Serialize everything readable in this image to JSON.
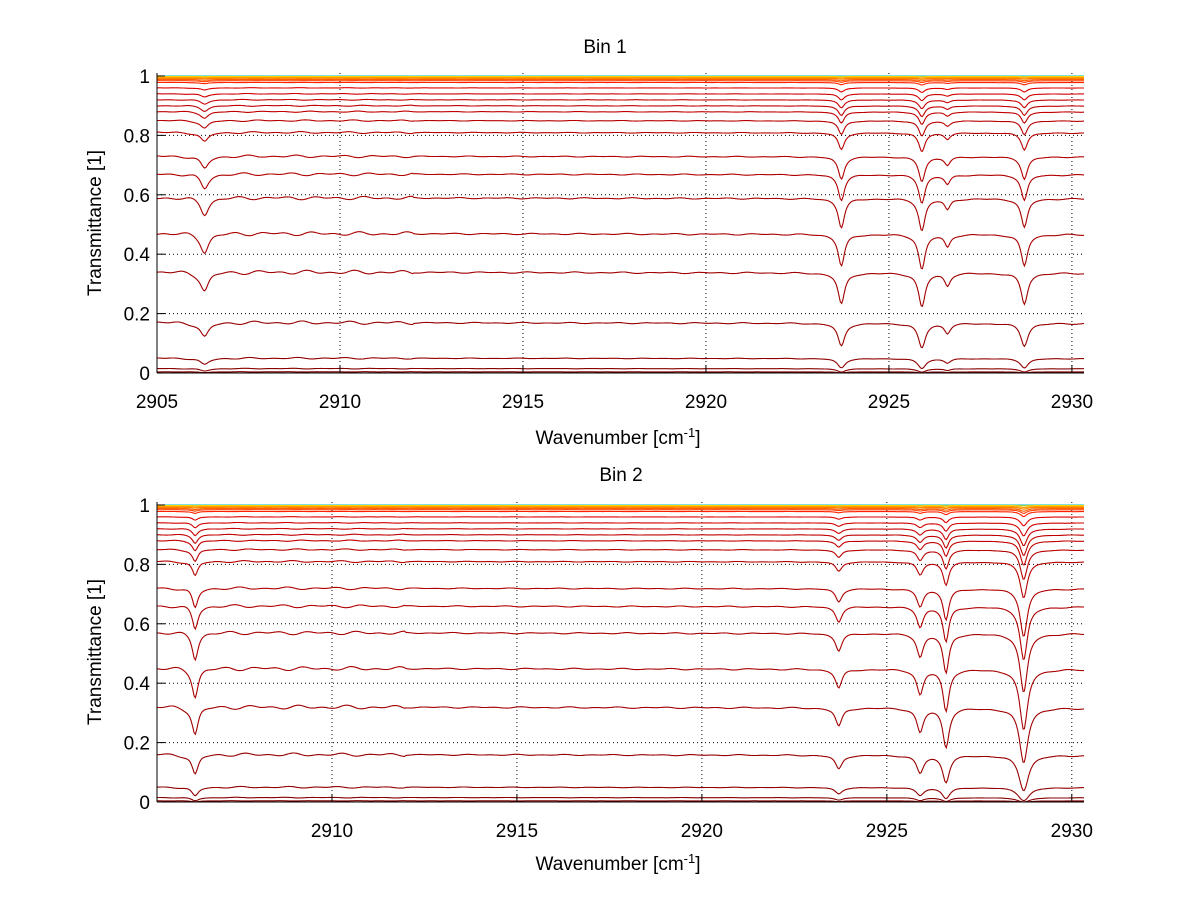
{
  "chart_data": [
    {
      "type": "line",
      "title": "Bin 1",
      "xlabel": "Wavenumber [cm",
      "xlabel_sup": "-1",
      "xlabel_end": "]",
      "ylabel": "Transmittance [1]",
      "xlim": [
        2905,
        2930.33
      ],
      "ylim": [
        0,
        1.01
      ],
      "xticks": [
        2905,
        2910,
        2915,
        2920,
        2925,
        2930
      ],
      "xtick_labels": [
        "2905",
        "2910",
        "2915",
        "2920",
        "2925",
        "2930"
      ],
      "yticks": [
        0,
        0.2,
        0.4,
        0.6,
        0.8,
        1
      ],
      "ytick_labels": [
        "0",
        "0.2",
        "0.4",
        "0.6",
        "0.8",
        "1"
      ],
      "grid": true,
      "peaks": [
        {
          "center": 2906.3,
          "width": 0.13,
          "strength": 0.19
        },
        {
          "center": 2923.7,
          "width": 0.1,
          "strength": 0.34
        },
        {
          "center": 2925.9,
          "width": 0.1,
          "strength": 0.38
        },
        {
          "center": 2926.6,
          "width": 0.09,
          "strength": 0.12
        },
        {
          "center": 2928.7,
          "width": 0.1,
          "strength": 0.34
        }
      ],
      "series": [
        {
          "baseline": 1.0,
          "color": "#00c0c0"
        },
        {
          "baseline": 0.998,
          "color": "#ffd000"
        },
        {
          "baseline": 0.995,
          "color": "#ffa000"
        },
        {
          "baseline": 0.992,
          "color": "#ff8000"
        },
        {
          "baseline": 0.988,
          "color": "#ff6000"
        },
        {
          "baseline": 0.984,
          "color": "#ff4000"
        },
        {
          "baseline": 0.978,
          "color": "#ff2000"
        },
        {
          "baseline": 0.96,
          "color": "#e00000"
        },
        {
          "baseline": 0.94,
          "color": "#d00000"
        },
        {
          "baseline": 0.92,
          "color": "#c80000"
        },
        {
          "baseline": 0.9,
          "color": "#c00000"
        },
        {
          "baseline": 0.88,
          "color": "#c00000"
        },
        {
          "baseline": 0.85,
          "color": "#b80000"
        },
        {
          "baseline": 0.81,
          "color": "#b80000"
        },
        {
          "baseline": 0.73,
          "color": "#b00000"
        },
        {
          "baseline": 0.67,
          "color": "#b00000"
        },
        {
          "baseline": 0.59,
          "color": "#a80000"
        },
        {
          "baseline": 0.47,
          "color": "#a80000"
        },
        {
          "baseline": 0.34,
          "color": "#a00000"
        },
        {
          "baseline": 0.17,
          "color": "#980000"
        },
        {
          "baseline": 0.05,
          "color": "#900000"
        },
        {
          "baseline": 0.015,
          "color": "#880000"
        },
        {
          "baseline": 0.004,
          "color": "#800000"
        }
      ]
    },
    {
      "type": "line",
      "title": "Bin 2",
      "xlabel": "Wavenumber [cm",
      "xlabel_sup": "-1",
      "xlabel_end": "]",
      "ylabel": "Transmittance [1]",
      "xlim": [
        2905.27,
        2930.33
      ],
      "ylim": [
        0,
        1.01
      ],
      "xticks": [
        2910,
        2915,
        2920,
        2925,
        2930
      ],
      "xtick_labels": [
        "2910",
        "2915",
        "2920",
        "2925",
        "2930"
      ],
      "yticks": [
        0,
        0.2,
        0.4,
        0.6,
        0.8,
        1
      ],
      "ytick_labels": [
        "0",
        "0.2",
        "0.4",
        "0.6",
        "0.8",
        "1"
      ],
      "grid": true,
      "peaks": [
        {
          "center": 2906.3,
          "width": 0.09,
          "strength": 0.3
        },
        {
          "center": 2923.7,
          "width": 0.1,
          "strength": 0.19
        },
        {
          "center": 2925.9,
          "width": 0.1,
          "strength": 0.26
        },
        {
          "center": 2926.6,
          "width": 0.09,
          "strength": 0.47
        },
        {
          "center": 2928.7,
          "width": 0.11,
          "strength": 0.76
        }
      ],
      "series": [
        {
          "baseline": 1.0,
          "color": "#00c0c0"
        },
        {
          "baseline": 0.998,
          "color": "#ffd000"
        },
        {
          "baseline": 0.995,
          "color": "#ffa000"
        },
        {
          "baseline": 0.992,
          "color": "#ff8000"
        },
        {
          "baseline": 0.988,
          "color": "#ff6000"
        },
        {
          "baseline": 0.984,
          "color": "#ff4000"
        },
        {
          "baseline": 0.978,
          "color": "#ff2000"
        },
        {
          "baseline": 0.96,
          "color": "#e00000"
        },
        {
          "baseline": 0.94,
          "color": "#d00000"
        },
        {
          "baseline": 0.92,
          "color": "#c80000"
        },
        {
          "baseline": 0.9,
          "color": "#c00000"
        },
        {
          "baseline": 0.88,
          "color": "#c00000"
        },
        {
          "baseline": 0.85,
          "color": "#b80000"
        },
        {
          "baseline": 0.81,
          "color": "#b80000"
        },
        {
          "baseline": 0.72,
          "color": "#b00000"
        },
        {
          "baseline": 0.66,
          "color": "#b00000"
        },
        {
          "baseline": 0.57,
          "color": "#a80000"
        },
        {
          "baseline": 0.45,
          "color": "#a80000"
        },
        {
          "baseline": 0.32,
          "color": "#a00000"
        },
        {
          "baseline": 0.16,
          "color": "#980000"
        },
        {
          "baseline": 0.05,
          "color": "#900000"
        },
        {
          "baseline": 0.015,
          "color": "#880000"
        },
        {
          "baseline": 0.004,
          "color": "#800000"
        }
      ]
    }
  ]
}
